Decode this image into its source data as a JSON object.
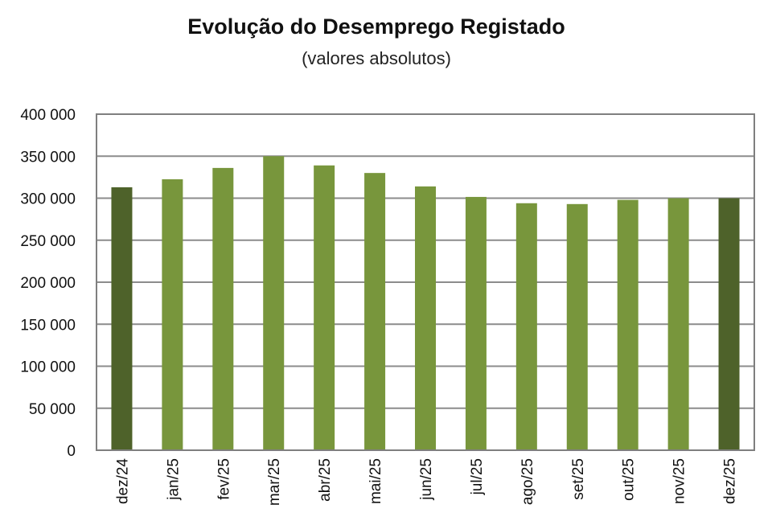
{
  "chart_data": {
    "type": "bar",
    "title": "Evolução do Desemprego Registado",
    "subtitle": "(valores absolutos)",
    "xlabel": "",
    "ylabel": "",
    "categories": [
      "dez/24",
      "jan/25",
      "fev/25",
      "mar/25",
      "abr/25",
      "mai/25",
      "jun/25",
      "jul/25",
      "ago/25",
      "set/25",
      "out/25",
      "nov/25",
      "dez/25"
    ],
    "values": [
      313000,
      322500,
      336000,
      350000,
      339000,
      330000,
      314000,
      301500,
      294000,
      293000,
      298000,
      300000,
      300000
    ],
    "highlighted": [
      true,
      false,
      false,
      false,
      false,
      false,
      false,
      false,
      false,
      false,
      false,
      false,
      true
    ],
    "ylim": [
      0,
      400000
    ],
    "yticks": [
      0,
      50000,
      100000,
      150000,
      200000,
      250000,
      300000,
      350000,
      400000
    ],
    "ytick_labels": [
      "0",
      "50 000",
      "100 000",
      "150 000",
      "200 000",
      "250 000",
      "300 000",
      "350 000",
      "400 000"
    ],
    "grid": true,
    "colors": {
      "bar": "#78963c",
      "bar_highlight": "#4e622a",
      "grid": "#8c8c8c",
      "frame": "#7f7f7f"
    }
  }
}
